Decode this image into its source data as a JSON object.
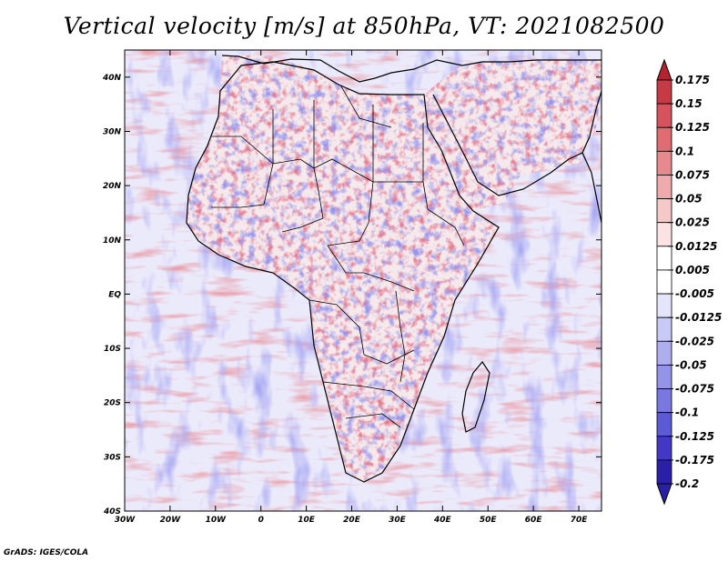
{
  "title": "Vertical velocity [m/s] at 850hPa, VT: 2021082500",
  "credit": "GrADS: IGES/COLA",
  "map": {
    "lat_labels": [
      "40N",
      "30N",
      "20N",
      "10N",
      "EQ",
      "10S",
      "20S",
      "30S",
      "40S"
    ],
    "lon_labels": [
      "30W",
      "20W",
      "10W",
      "0",
      "10E",
      "20E",
      "30E",
      "40E",
      "50E",
      "60E",
      "70E"
    ],
    "lon_range": [
      -30,
      75
    ],
    "lat_range": [
      -40,
      45
    ],
    "ocean_color": "#ebeafb",
    "land_color": "#f6e9ec"
  },
  "colorbar": {
    "levels": [
      "0.175",
      "0.15",
      "0.125",
      "0.1",
      "0.075",
      "0.05",
      "0.025",
      "0.0125",
      "0.005",
      "-0.005",
      "-0.0125",
      "-0.025",
      "-0.05",
      "-0.075",
      "-0.1",
      "-0.125",
      "-0.175",
      "-0.2"
    ],
    "top_arrow_color": "#b4232f",
    "bottom_arrow_color": "#2b1fa8",
    "colors": [
      "#b4232f",
      "#c63a45",
      "#d4535c",
      "#de6c72",
      "#e68a8e",
      "#eeaaad",
      "#f5c8ca",
      "#fbe3e4",
      "#ffffff",
      "#ffffff",
      "#e4e4fb",
      "#c9c9f6",
      "#aeaeef",
      "#9393e8",
      "#7878e0",
      "#5d5ad6",
      "#4338c6",
      "#2b1fa8"
    ]
  }
}
